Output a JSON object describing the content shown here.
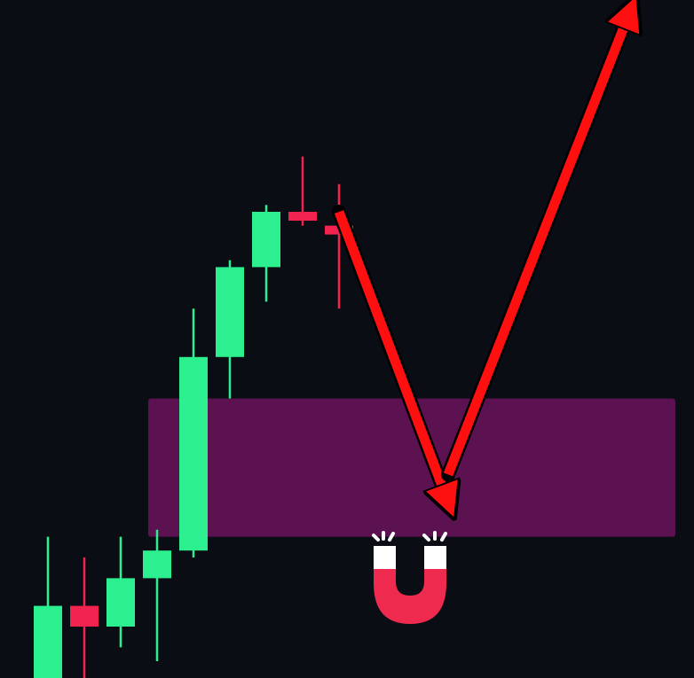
{
  "colors": {
    "background": "#0b0d14",
    "bull": "#2cf08f",
    "bear": "#f2234f",
    "zone": "#5c1150",
    "arrow": "#ff1010",
    "arrow_outline": "#000000",
    "magnet_red": "#ef2a4f",
    "magnet_tip": "#ffffff",
    "magnet_spark": "#ffffff"
  },
  "icons": {
    "magnet": "magnet-icon"
  },
  "chart_data": {
    "type": "candlestick",
    "grid": false,
    "legend": "none",
    "ylim": [
      0,
      100
    ],
    "candles": [
      {
        "open": 0,
        "high": 0,
        "low": 0,
        "close": 0,
        "direction": "up"
      },
      {
        "open": 0,
        "high": 23,
        "low": 0,
        "close": 13,
        "direction": "up"
      },
      {
        "open": 10,
        "high": 20,
        "low": 1,
        "close": 13,
        "direction": "down"
      },
      {
        "open": 10,
        "high": 23,
        "low": 7,
        "close": 17,
        "direction": "up"
      },
      {
        "open": 17,
        "high": 24,
        "low": 5,
        "close": 21,
        "direction": "up"
      },
      {
        "open": 21,
        "high": 56,
        "low": 20,
        "close": 49,
        "direction": "up"
      },
      {
        "open": 49,
        "high": 63,
        "low": 43,
        "close": 62,
        "direction": "up"
      },
      {
        "open": 62,
        "high": 71,
        "low": 57,
        "close": 70,
        "direction": "up"
      },
      {
        "open": 70,
        "high": 78,
        "low": 68,
        "close": 69,
        "direction": "down"
      },
      {
        "open": 68,
        "high": 74,
        "low": 56,
        "close": 68,
        "direction": "down"
      }
    ],
    "zone": {
      "low": 23,
      "high": 43,
      "from_index": 4,
      "to_index": 18
    },
    "path_arrows": [
      {
        "from": {
          "index": 9,
          "value": 70
        },
        "to": {
          "index": 12,
          "value": 28
        }
      },
      {
        "from": {
          "index": 12,
          "value": 32
        },
        "to": {
          "index": 17,
          "value": 99
        }
      }
    ]
  }
}
